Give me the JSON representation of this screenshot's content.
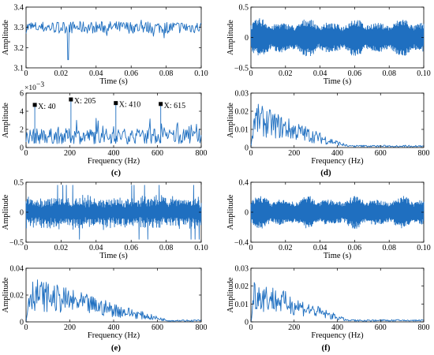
{
  "panel_labels": {
    "c": "(c)",
    "d": "(d)",
    "e": "(e)",
    "f": "(f)"
  },
  "labels": {
    "amplitude": "Amplitude",
    "time": "Time (s)",
    "frequency": "Frequency (Hz)"
  },
  "chart_data": [
    {
      "id": "c-time",
      "type": "line",
      "panel": "(c)",
      "xlabel": "Time (s)",
      "ylabel": "Amplitude",
      "xlim": [
        0,
        0.1
      ],
      "ylim": [
        3.1,
        3.4
      ],
      "xticks": [
        "0",
        "0.02",
        "0.04",
        "0.06",
        "0.08",
        "0.10"
      ],
      "yticks": [
        "3.1",
        "3.2",
        "3.3",
        "3.4"
      ],
      "series": [
        {
          "mean": 3.3,
          "spread": 0.03,
          "n": 260,
          "dips": [
            [
              0.024,
              3.14
            ]
          ]
        }
      ]
    },
    {
      "id": "c-freq",
      "type": "line",
      "panel": "(c)",
      "xlabel": "Frequency (Hz)",
      "ylabel": "Amplitude",
      "xlim": [
        0,
        800
      ],
      "ylim": [
        0,
        6
      ],
      "scale_exponent": "×10",
      "scale_power": "−3",
      "xticks": [
        "0",
        "200",
        "400",
        "600",
        "800"
      ],
      "yticks": [
        "0",
        "2",
        "4",
        "6"
      ],
      "series": [
        {
          "baseline": 1.5,
          "spread": 0.8,
          "n": 260,
          "peaks": [
            {
              "x": 40,
              "y": 4.7
            },
            {
              "x": 205,
              "y": 5.3
            },
            {
              "x": 410,
              "y": 4.9
            },
            {
              "x": 615,
              "y": 4.8
            }
          ]
        }
      ],
      "annotations": [
        "X: 40",
        "X: 205",
        "X: 410",
        "X: 615"
      ]
    },
    {
      "id": "d-time",
      "type": "line",
      "panel": "(d)",
      "xlabel": "Time (s)",
      "ylabel": "Amplitude",
      "xlim": [
        0,
        0.1
      ],
      "ylim": [
        -0.5,
        0.5
      ],
      "xticks": [
        "0",
        "0.02",
        "0.04",
        "0.06",
        "0.08",
        "0.10"
      ],
      "yticks": [
        "−0.5",
        "0",
        "0.5"
      ],
      "series": [
        {
          "amplitude": 0.32,
          "n": 600
        }
      ]
    },
    {
      "id": "d-freq",
      "type": "line",
      "panel": "(d)",
      "xlabel": "Frequency (Hz)",
      "ylabel": "Amplitude",
      "xlim": [
        0,
        800
      ],
      "ylim": [
        0,
        0.03
      ],
      "xticks": [
        "0",
        "200",
        "400",
        "600",
        "800"
      ],
      "yticks": [
        "0",
        "0.01",
        "0.02",
        "0.03"
      ],
      "series": [
        {
          "peak": 0.025,
          "decay_end": 450,
          "n": 260
        }
      ]
    },
    {
      "id": "e-time",
      "type": "line",
      "panel": "(e)",
      "xlabel": "Time (s)",
      "ylabel": "Amplitude",
      "xlim": [
        0,
        0.1
      ],
      "ylim": [
        -0.5,
        0.5
      ],
      "xticks": [
        "0",
        "0.02",
        "0.04",
        "0.06",
        "0.08",
        "0.10"
      ],
      "yticks": [
        "−0.5",
        "0",
        "0.5"
      ],
      "series": [
        {
          "amplitude": 0.3,
          "n": 600
        }
      ]
    },
    {
      "id": "e-freq",
      "type": "line",
      "panel": "(e)",
      "xlabel": "Frequency (Hz)",
      "ylabel": "Amplitude",
      "xlim": [
        0,
        800
      ],
      "ylim": [
        0,
        0.04
      ],
      "xticks": [
        "0",
        "200",
        "400",
        "600",
        "800"
      ],
      "yticks": [
        "0",
        "0.02",
        "0.04"
      ],
      "series": [
        {
          "peak": 0.034,
          "decay_end": 650,
          "n": 260
        }
      ]
    },
    {
      "id": "f-time",
      "type": "line",
      "panel": "(f)",
      "xlabel": "Time (s)",
      "ylabel": "Amplitude",
      "xlim": [
        0,
        0.1
      ],
      "ylim": [
        -0.4,
        0.4
      ],
      "xticks": [
        "0",
        "0.02",
        "0.04",
        "0.06",
        "0.08",
        "0.10"
      ],
      "yticks": [
        "−0.4",
        "0",
        "0.4"
      ],
      "series": [
        {
          "amplitude": 0.22,
          "n": 600
        }
      ]
    },
    {
      "id": "f-freq",
      "type": "line",
      "panel": "(f)",
      "xlabel": "Frequency (Hz)",
      "ylabel": "Amplitude",
      "xlim": [
        0,
        800
      ],
      "ylim": [
        0,
        0.03
      ],
      "xticks": [
        "0",
        "200",
        "400",
        "600",
        "800"
      ],
      "yticks": [
        "0",
        "0.01",
        "0.02",
        "0.03"
      ],
      "series": [
        {
          "peak": 0.025,
          "decay_end": 450,
          "n": 260
        }
      ]
    }
  ],
  "colors": {
    "signal": "#1f6fc0",
    "axis": "#000000"
  }
}
